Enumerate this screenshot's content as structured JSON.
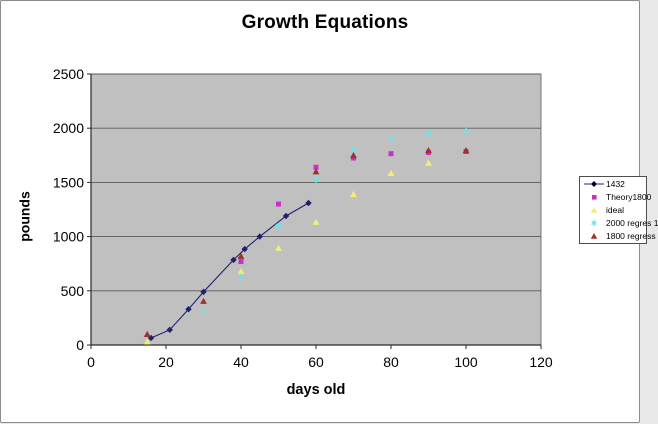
{
  "figure": {
    "background": "#ffffff",
    "border_color": "#8c8c8c"
  },
  "chart_data": {
    "type": "scatter",
    "title": "Growth Equations",
    "xlabel": "days old",
    "ylabel": "pounds",
    "xlim": [
      0,
      120
    ],
    "ylim": [
      0,
      2500
    ],
    "x_ticks": [
      0,
      20,
      40,
      60,
      80,
      100,
      120
    ],
    "y_ticks": [
      0,
      500,
      1000,
      1500,
      2000,
      2500
    ],
    "grid": "horizontal",
    "plot_bg": "#c0c0c0",
    "grid_color": "#5a5a5a",
    "axis_color": "#2a2a2a",
    "tick_label_color": "#000000",
    "legend_position": "right",
    "series": [
      {
        "name": "1432",
        "color": "#202070",
        "marker": "diamond",
        "line": true,
        "points": [
          [
            16,
            65
          ],
          [
            21,
            140
          ],
          [
            26,
            330
          ],
          [
            30,
            490
          ],
          [
            38,
            785
          ],
          [
            41,
            885
          ],
          [
            45,
            1000
          ],
          [
            52,
            1190
          ],
          [
            58,
            1310
          ]
        ]
      },
      {
        "name": "Theory1800",
        "color": "#cc2fcc",
        "marker": "square",
        "line": false,
        "points": [
          [
            40,
            770
          ],
          [
            50,
            1300
          ],
          [
            60,
            1640
          ],
          [
            70,
            1725
          ],
          [
            80,
            1765
          ],
          [
            90,
            1775
          ],
          [
            100,
            1785
          ]
        ]
      },
      {
        "name": "ideal",
        "color": "#efef75",
        "marker": "triangle",
        "line": false,
        "points": [
          [
            15,
            30
          ],
          [
            40,
            680
          ],
          [
            50,
            895
          ],
          [
            60,
            1135
          ],
          [
            70,
            1390
          ],
          [
            80,
            1585
          ],
          [
            90,
            1680
          ]
        ]
      },
      {
        "name": "2000 regres 1",
        "color": "#73e2e2",
        "marker": "asterisk",
        "line": false,
        "points": [
          [
            30,
            315
          ],
          [
            40,
            630
          ],
          [
            50,
            1100
          ],
          [
            60,
            1525
          ],
          [
            70,
            1805
          ],
          [
            80,
            1905
          ],
          [
            90,
            1955
          ],
          [
            100,
            1975
          ]
        ]
      },
      {
        "name": "1800 regress",
        "color": "#993333",
        "marker": "triangle",
        "line": false,
        "points": [
          [
            15,
            100
          ],
          [
            30,
            405
          ],
          [
            40,
            820
          ],
          [
            60,
            1600
          ],
          [
            70,
            1750
          ],
          [
            90,
            1795
          ],
          [
            100,
            1795
          ]
        ]
      }
    ]
  }
}
